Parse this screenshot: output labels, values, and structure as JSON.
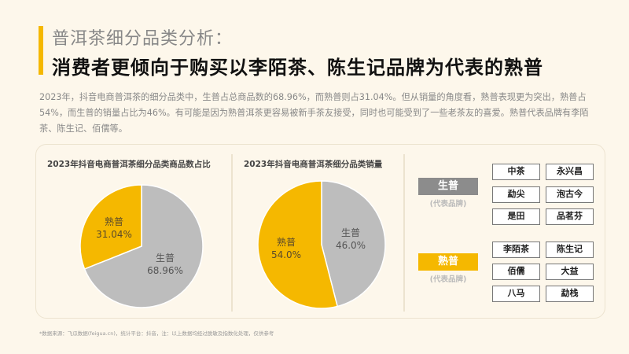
{
  "header": {
    "title": "普洱茶细分品类分析：",
    "subtitle": "消费者更倾向于购买以李陌茶、陈生记品牌为代表的熟普",
    "accent_color": "#f5b800"
  },
  "description": "2023年，抖音电商普洱茶的细分品类中，生普占总商品数的68.96%，而熟普则占31.04%。但从销量的角度看，熟普表现更为突出，熟普占54%，而生普的销量占比为46%。有可能是因为熟普洱茶更容易被新手茶友接受，同时也可能受到了一些老茶友的喜爱。熟普代表品牌有李陌茶、陈生记、佰儒等。",
  "chart_data": [
    {
      "type": "pie",
      "title": "2023年抖音电商普洱茶细分品类商品数占比",
      "categories": [
        "熟普",
        "生普"
      ],
      "values": [
        31.04,
        68.96
      ],
      "labels": [
        "31.04%",
        "68.96%"
      ],
      "colors": [
        "#f5b800",
        "#bdbdbd"
      ]
    },
    {
      "type": "pie",
      "title": "2023年抖音电商普洱茶细分品类销量",
      "categories": [
        "熟普",
        "生普"
      ],
      "values": [
        54.0,
        46.0
      ],
      "labels": [
        "54.0%",
        "46.0%"
      ],
      "colors": [
        "#f5b800",
        "#bdbdbd"
      ]
    }
  ],
  "brands": {
    "raw": {
      "label": "生普",
      "sub": "(代表品牌)",
      "color": "#8c8c8c",
      "items": [
        "中茶",
        "永兴昌",
        "勐尖",
        "泡古今",
        "是田",
        "品茗芬"
      ]
    },
    "ripe": {
      "label": "熟普",
      "sub": "(代表品牌)",
      "color": "#f5b800",
      "items": [
        "李陌茶",
        "陈生记",
        "佰儒",
        "大益",
        "八马",
        "勐栈"
      ]
    }
  },
  "footnote": "*数据来源：飞瓜数据(feigua.cn)，统计平台：抖音，注：以上数据均经过脱敏及指数化处理，仅供参考"
}
